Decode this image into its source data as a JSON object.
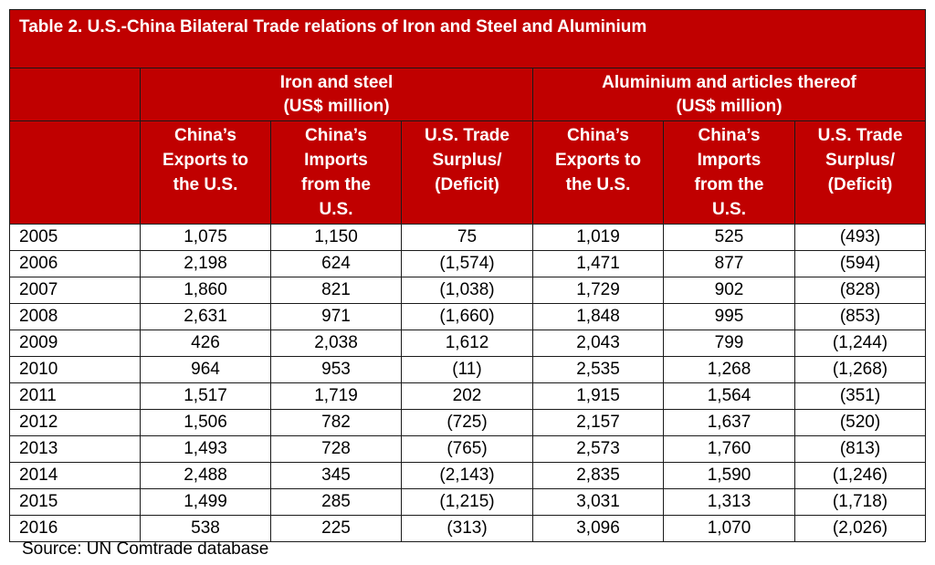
{
  "title": "Table 2. U.S.-China Bilateral Trade relations of Iron and Steel and Aluminium",
  "groups": [
    {
      "label": "Iron and steel\n(US$ million)"
    },
    {
      "label": "Aluminium and articles thereof\n(US$ million)"
    }
  ],
  "subheaders": [
    "China’s\nExports to\nthe U.S.",
    "China’s\nImports\nfrom the\nU.S.",
    "U.S. Trade\nSurplus/\n(Deficit)",
    "China’s\nExports to\nthe U.S.",
    "China’s\nImports\nfrom the\nU.S.",
    "U.S. Trade\nSurplus/\n(Deficit)"
  ],
  "rows": [
    [
      "2005",
      "1,075",
      "1,150",
      "75",
      "1,019",
      "525",
      "(493)"
    ],
    [
      "2006",
      "2,198",
      "624",
      "(1,574)",
      "1,471",
      "877",
      "(594)"
    ],
    [
      "2007",
      "1,860",
      "821",
      "(1,038)",
      "1,729",
      "902",
      "(828)"
    ],
    [
      "2008",
      "2,631",
      "971",
      "(1,660)",
      "1,848",
      "995",
      "(853)"
    ],
    [
      "2009",
      "426",
      "2,038",
      "1,612",
      "2,043",
      "799",
      "(1,244)"
    ],
    [
      "2010",
      "964",
      "953",
      "(11)",
      "2,535",
      "1,268",
      "(1,268)"
    ],
    [
      "2011",
      "1,517",
      "1,719",
      "202",
      "1,915",
      "1,564",
      "(351)"
    ],
    [
      "2012",
      "1,506",
      "782",
      "(725)",
      "2,157",
      "1,637",
      "(520)"
    ],
    [
      "2013",
      "1,493",
      "728",
      "(765)",
      "2,573",
      "1,760",
      "(813)"
    ],
    [
      "2014",
      "2,488",
      "345",
      "(2,143)",
      "2,835",
      "1,590",
      "(1,246)"
    ],
    [
      "2015",
      "1,499",
      "285",
      "(1,215)",
      "3,031",
      "1,313",
      "(1,718)"
    ],
    [
      "2016",
      "538",
      "225",
      "(313)",
      "3,096",
      "1,070",
      "(2,026)"
    ]
  ],
  "source": "Source: UN Comtrade database",
  "colors": {
    "header_bg": "#c00000",
    "header_text": "#ffffff"
  }
}
